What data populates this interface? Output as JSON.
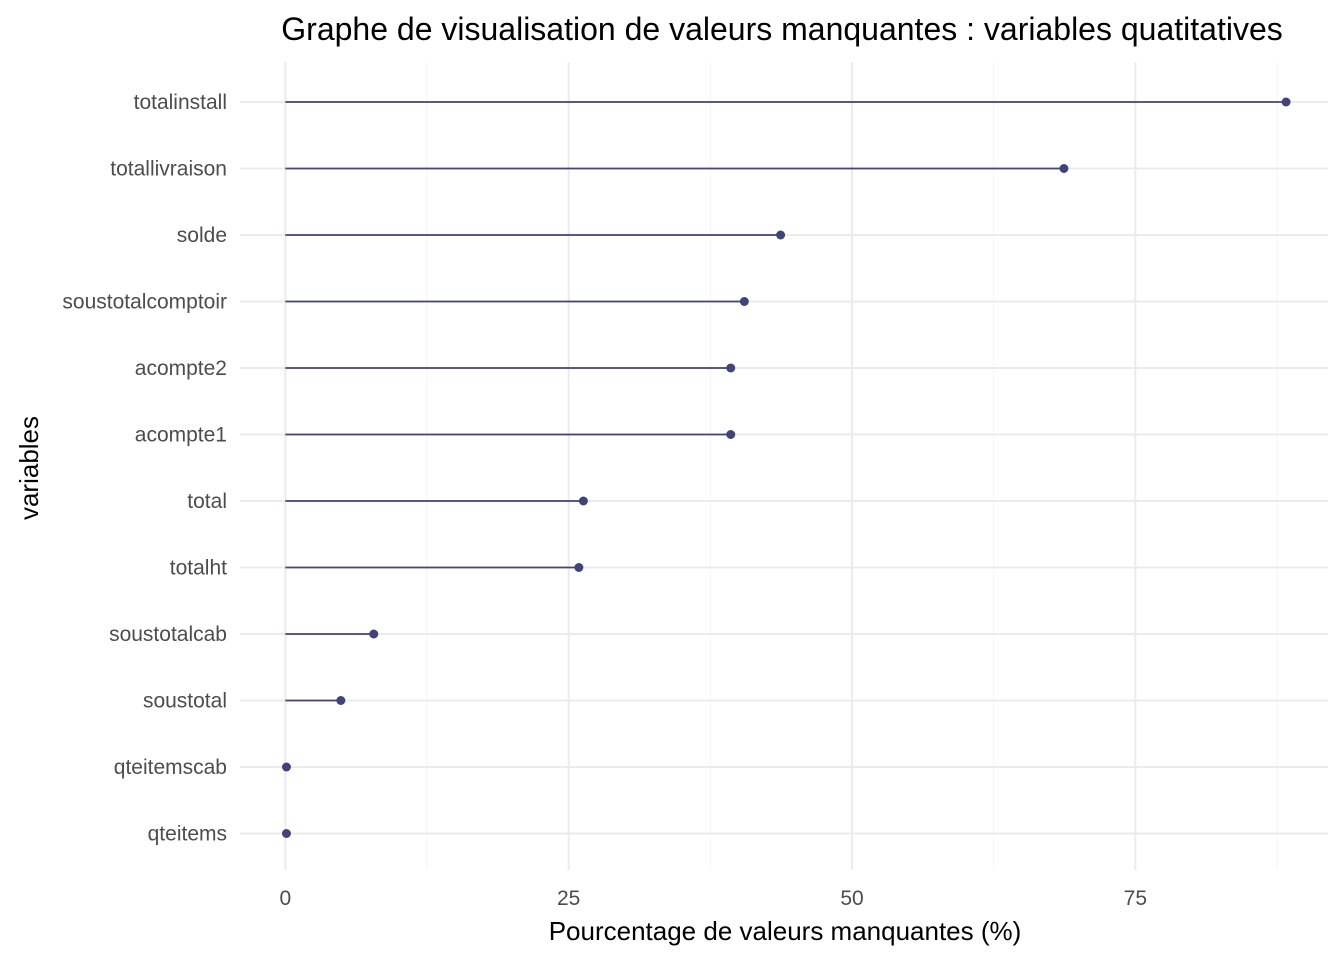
{
  "chart_data": {
    "type": "lollipop",
    "title": "Graphe de visualisation de valeurs manquantes : variables quatitatives",
    "xlabel": "Pourcentage de valeurs manquantes (%)",
    "ylabel": "variables",
    "xlim": [
      -4,
      92
    ],
    "x_ticks": [
      0,
      25,
      50,
      75
    ],
    "x_minor_ticks": [
      12.5,
      37.5,
      62.5,
      87.5
    ],
    "grid": true,
    "color": "#414478",
    "series": [
      {
        "category": "totalinstall",
        "value": 88.3
      },
      {
        "category": "totallivraison",
        "value": 68.7
      },
      {
        "category": "solde",
        "value": 43.7
      },
      {
        "category": "soustotalcomptoir",
        "value": 40.5
      },
      {
        "category": "acompte2",
        "value": 39.3
      },
      {
        "category": "acompte1",
        "value": 39.3
      },
      {
        "category": "total",
        "value": 26.3
      },
      {
        "category": "totalht",
        "value": 25.9
      },
      {
        "category": "soustotalcab",
        "value": 7.8
      },
      {
        "category": "soustotal",
        "value": 4.9
      },
      {
        "category": "qteitemscab",
        "value": 0.1
      },
      {
        "category": "qteitems",
        "value": 0.1
      }
    ]
  }
}
